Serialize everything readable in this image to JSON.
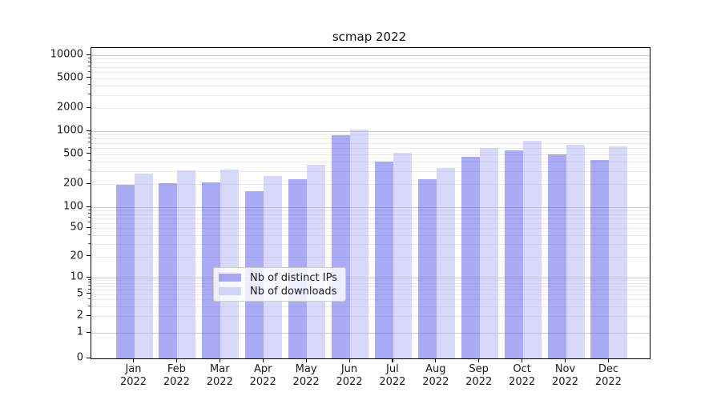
{
  "title": "scmap 2022",
  "chart_data": {
    "type": "bar",
    "title": "scmap 2022",
    "xlabel": "",
    "ylabel": "",
    "yscale": "symlog",
    "ylim": [
      0,
      12500
    ],
    "grid": "both",
    "legend_position": "lower center (inside axes)",
    "categories": [
      {
        "month": "Jan",
        "year": "2022"
      },
      {
        "month": "Feb",
        "year": "2022"
      },
      {
        "month": "Mar",
        "year": "2022"
      },
      {
        "month": "Apr",
        "year": "2022"
      },
      {
        "month": "May",
        "year": "2022"
      },
      {
        "month": "Jun",
        "year": "2022"
      },
      {
        "month": "Jul",
        "year": "2022"
      },
      {
        "month": "Aug",
        "year": "2022"
      },
      {
        "month": "Sep",
        "year": "2022"
      },
      {
        "month": "Oct",
        "year": "2022"
      },
      {
        "month": "Nov",
        "year": "2022"
      },
      {
        "month": "Dec",
        "year": "2022"
      }
    ],
    "series": [
      {
        "name": "Nb of distinct IPs",
        "color": "#5555eb",
        "values": [
          197,
          206,
          211,
          161,
          232,
          886,
          398,
          235,
          460,
          559,
          495,
          418
        ]
      },
      {
        "name": "Nb of downloads",
        "color": "#b1b1f5",
        "values": [
          276,
          304,
          313,
          257,
          360,
          1051,
          520,
          326,
          601,
          748,
          662,
          631
        ]
      }
    ],
    "yticks": [
      {
        "value": 10000,
        "label": "10000"
      },
      {
        "value": 5000,
        "label": "5000"
      },
      {
        "value": 2000,
        "label": "2000"
      },
      {
        "value": 1000,
        "label": "1000"
      },
      {
        "value": 500,
        "label": "500"
      },
      {
        "value": 200,
        "label": "200"
      },
      {
        "value": 100,
        "label": "100"
      },
      {
        "value": 50,
        "label": "50"
      },
      {
        "value": 20,
        "label": "20"
      },
      {
        "value": 10,
        "label": "10"
      },
      {
        "value": 5,
        "label": "5"
      },
      {
        "value": 2,
        "label": "2"
      },
      {
        "value": 1,
        "label": "1"
      },
      {
        "value": 0,
        "label": "0"
      }
    ]
  },
  "colors": {
    "bar_distinct_ips_on_white": "#aaaaf5",
    "bar_downloads_on_white": "#d8d8fa",
    "grid_major": "#c9c9c9",
    "grid_minor": "#eaeaea",
    "spine": "#000000",
    "text": "#1a1a1a"
  }
}
